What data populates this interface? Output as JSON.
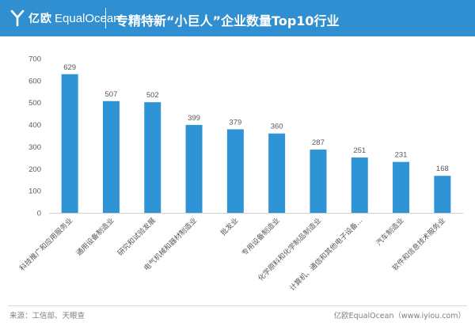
{
  "header": {
    "brand_cn": "亿欧",
    "brand_en": "EqualOcean",
    "title": "专精特新“小巨人”企业数量Top10行业"
  },
  "footer": {
    "source": "来源：工信部、天眼查",
    "credit": "亿欧EqualOcean（www.iyiou.com）"
  },
  "colors": {
    "header_bg": "#2f8fd0",
    "bar": "#2e94d6",
    "axis_text": "#595959",
    "label_text": "#595959"
  },
  "chart_data": {
    "type": "bar",
    "title": "专精特新“小巨人”企业数量Top10行业",
    "xlabel": "",
    "ylabel": "",
    "ylim": [
      0,
      700
    ],
    "yticks": [
      0,
      100,
      200,
      300,
      400,
      500,
      600,
      700
    ],
    "grid": false,
    "categories": [
      "科技推广和应用服务业",
      "通用设备制造业",
      "研究和试验发展",
      "电气机械和器材制造业",
      "批发业",
      "专用设备制造业",
      "化学原料和化学制品制造业",
      "计算机、通信和其他电子设备...",
      "汽车制造业",
      "软件和信息技术服务业"
    ],
    "values": [
      629,
      507,
      502,
      399,
      379,
      360,
      287,
      251,
      231,
      168
    ]
  }
}
